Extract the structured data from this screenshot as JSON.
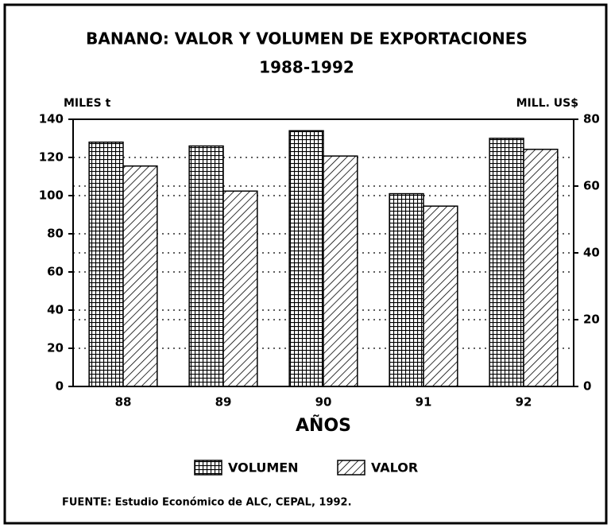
{
  "chart_data": {
    "type": "bar",
    "title": "BANANO: VALOR Y VOLUMEN DE EXPORTACIONES",
    "subtitle": "1988-1992",
    "y_label": "MILES t",
    "y2_label": "MILL. US$",
    "x_label": "AÑOS",
    "source": "FUENTE: Estudio Económico de ALC, CEPAL, 1992.",
    "categories": [
      "88",
      "89",
      "90",
      "91",
      "92"
    ],
    "series": [
      {
        "name": "VOLUMEN",
        "color": "#000000",
        "values": [
          128,
          126,
          134,
          101,
          130
        ]
      },
      {
        "name": "VALOR",
        "color": "#000000",
        "axis": "y2",
        "values": [
          66,
          58.5,
          69,
          54,
          71
        ]
      }
    ],
    "ylim": [
      0,
      140
    ],
    "yticks": [
      0,
      20,
      40,
      60,
      80,
      100,
      120,
      140
    ],
    "y2lim": [
      0,
      80
    ],
    "y2ticks": [
      0,
      20,
      40,
      60,
      80
    ],
    "grid": true,
    "legend": "bottom"
  }
}
